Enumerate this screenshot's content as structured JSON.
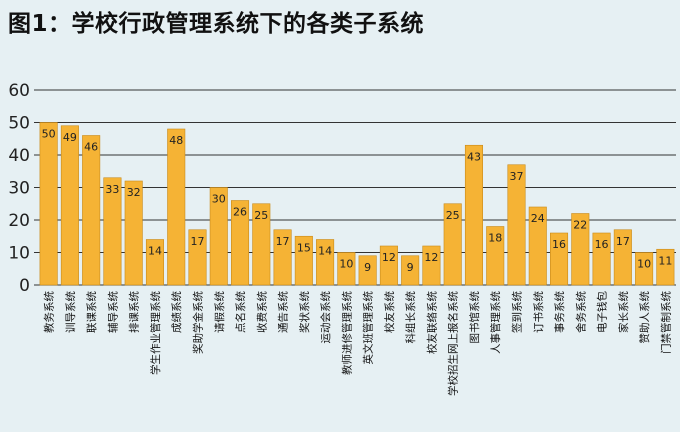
{
  "chart_data": {
    "type": "bar",
    "title": "图1：学校行政管理系统下的各类子系统",
    "xlabel": "",
    "ylabel": "",
    "ylim": [
      0,
      60
    ],
    "yticks": [
      0,
      10,
      20,
      30,
      40,
      50,
      60
    ],
    "grid": true,
    "legend": "none",
    "bar_color": "#f5b335",
    "bar_edge_color": "#c88a1a",
    "grid_color": "#333333",
    "categories": [
      "教务系统",
      "训导系统",
      "联课系统",
      "辅导系统",
      "排课系统",
      "学生作业管理系统",
      "成绩系统",
      "奖助学金系统",
      "请假系统",
      "点名系统",
      "收费系统",
      "通告系统",
      "奖状系统",
      "运动会系统",
      "教师进修管理系统",
      "英文班管理系统",
      "校友系统",
      "科组长系统",
      "校友联络系统",
      "学校招生网上报名系统",
      "图书馆系统",
      "人事管理系统",
      "签到系统",
      "订书系统",
      "事务系统",
      "舍务系统",
      "电子钱包",
      "家长系统",
      "赞助人系统",
      "门禁管制系统"
    ],
    "values": [
      50,
      49,
      46,
      33,
      32,
      14,
      48,
      17,
      30,
      26,
      25,
      17,
      15,
      14,
      10,
      9,
      12,
      9,
      12,
      25,
      43,
      18,
      37,
      24,
      16,
      22,
      16,
      17,
      10,
      11
    ]
  }
}
